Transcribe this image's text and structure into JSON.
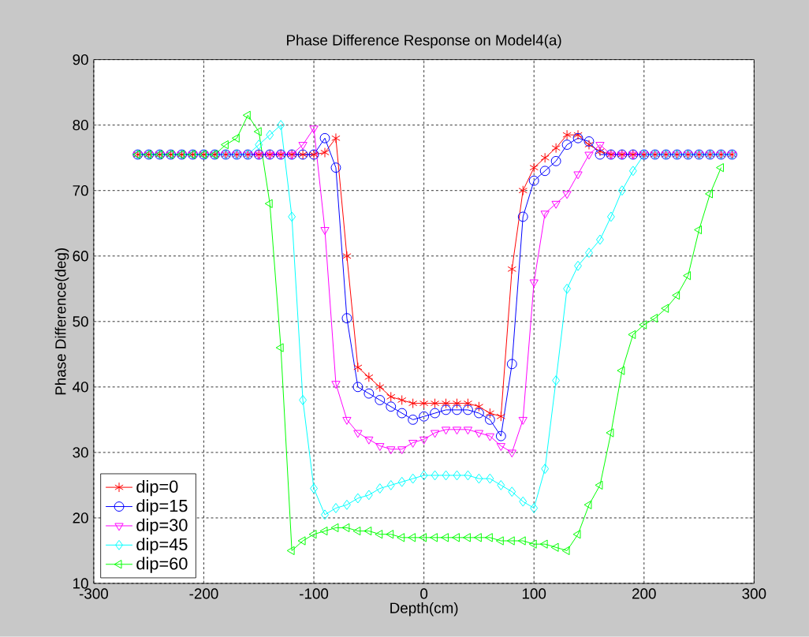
{
  "chart_data": {
    "type": "line",
    "title": "Phase Difference Response on Model4(a)",
    "xlabel": "Depth(cm)",
    "ylabel": "Phase Difference(deg)",
    "x": [
      -260,
      -250,
      -240,
      -230,
      -220,
      -210,
      -200,
      -190,
      -180,
      -170,
      -160,
      -150,
      -140,
      -130,
      -120,
      -110,
      -100,
      -90,
      -80,
      -70,
      -60,
      -50,
      -40,
      -30,
      -20,
      -10,
      0,
      10,
      20,
      30,
      40,
      50,
      60,
      70,
      80,
      90,
      100,
      110,
      120,
      130,
      140,
      150,
      160,
      170,
      180,
      190,
      200,
      210,
      220,
      230,
      240,
      250,
      260,
      270,
      280
    ],
    "series": [
      {
        "name": "dip=0",
        "color": "#ff0000",
        "marker": "cross",
        "values": [
          75.5,
          75.5,
          75.5,
          75.5,
          75.5,
          75.5,
          75.5,
          75.5,
          75.5,
          75.5,
          75.5,
          75.5,
          75.5,
          75.5,
          75.5,
          75.5,
          75.5,
          75.8,
          78,
          60,
          43,
          41.5,
          40,
          38.5,
          38,
          37.5,
          37.5,
          37.5,
          37.5,
          37.5,
          37.5,
          37,
          36,
          35.5,
          58,
          70,
          73.5,
          75,
          76.5,
          78.5,
          78.5,
          77,
          76,
          75.5,
          75.5,
          75.5,
          75.5,
          75.5,
          75.5,
          75.5,
          75.5,
          75.5,
          75.5,
          75.5,
          75.5
        ]
      },
      {
        "name": "dip=15",
        "color": "#0000ff",
        "marker": "circle",
        "values": [
          75.5,
          75.5,
          75.5,
          75.5,
          75.5,
          75.5,
          75.5,
          75.5,
          75.5,
          75.5,
          75.5,
          75.5,
          75.5,
          75.5,
          75.5,
          75.5,
          75.5,
          78,
          73.5,
          50.5,
          40,
          39,
          38,
          37,
          36,
          35,
          35.5,
          36,
          36.5,
          36.5,
          36.5,
          36,
          35,
          32.5,
          43.5,
          66,
          71.5,
          73,
          74.5,
          77,
          78,
          77.5,
          75.5,
          75.5,
          75.5,
          75.5,
          75.5,
          75.5,
          75.5,
          75.5,
          75.5,
          75.5,
          75.5,
          75.5,
          75.5
        ]
      },
      {
        "name": "dip=30",
        "color": "#ff00ff",
        "marker": "triangle",
        "values": [
          75.5,
          75.5,
          75.5,
          75.5,
          75.5,
          75.5,
          75.5,
          75.5,
          75.5,
          75.5,
          75.5,
          75.5,
          75.5,
          75.5,
          75.5,
          77,
          79.5,
          64,
          40.5,
          35,
          33,
          32,
          31,
          30.5,
          30.5,
          31.5,
          32,
          33,
          33.5,
          33.5,
          33.5,
          33,
          32.5,
          31,
          30,
          35,
          56,
          66.5,
          68,
          69.5,
          72.5,
          75.5,
          77,
          75.5,
          75.5,
          75.5,
          75.5,
          75.5,
          75.5,
          75.5,
          75.5,
          75.5,
          75.5,
          75.5,
          75.5
        ]
      },
      {
        "name": "dip=45",
        "color": "#00ffff",
        "marker": "diamond",
        "values": [
          75.5,
          75.5,
          75.5,
          75.5,
          75.5,
          75.5,
          75.5,
          75.5,
          75.5,
          75.5,
          75.5,
          77,
          78.5,
          80,
          66,
          38,
          24.5,
          20.5,
          21.5,
          22,
          23,
          23.5,
          24.5,
          25,
          25.5,
          26,
          26.5,
          26.5,
          26.5,
          26.5,
          26.5,
          26,
          26,
          25,
          24,
          22.5,
          21.5,
          27.5,
          41,
          55,
          58.5,
          60.5,
          62.5,
          66,
          70,
          73,
          75.5,
          75.5,
          75.5,
          75.5,
          75.5,
          75.5,
          75.5,
          75.5,
          75.5
        ]
      },
      {
        "name": "dip=60",
        "color": "#00ff00",
        "marker": "triangle",
        "values": [
          75.5,
          75.5,
          75.5,
          75.5,
          75.5,
          75.5,
          75.5,
          75.5,
          77,
          78,
          81.5,
          79,
          68,
          46,
          15,
          16.5,
          17.5,
          18,
          18.5,
          18.5,
          18,
          18,
          17.5,
          17.5,
          17,
          17,
          17,
          17,
          17,
          17,
          17,
          17,
          17,
          16.5,
          16.5,
          16.5,
          16,
          16,
          15.5,
          15,
          17.5,
          22,
          25,
          33,
          42.5,
          48,
          49.5,
          50.5,
          52,
          54,
          57,
          64,
          69.5,
          73.5,
          null
        ]
      }
    ],
    "xlim": [
      -300,
      300
    ],
    "ylim": [
      10,
      90
    ],
    "xticks": [
      -300,
      -200,
      -100,
      0,
      100,
      200,
      300
    ],
    "yticks": [
      10,
      20,
      30,
      40,
      50,
      60,
      70,
      80,
      90
    ],
    "grid": true,
    "legend": "bottom left"
  }
}
